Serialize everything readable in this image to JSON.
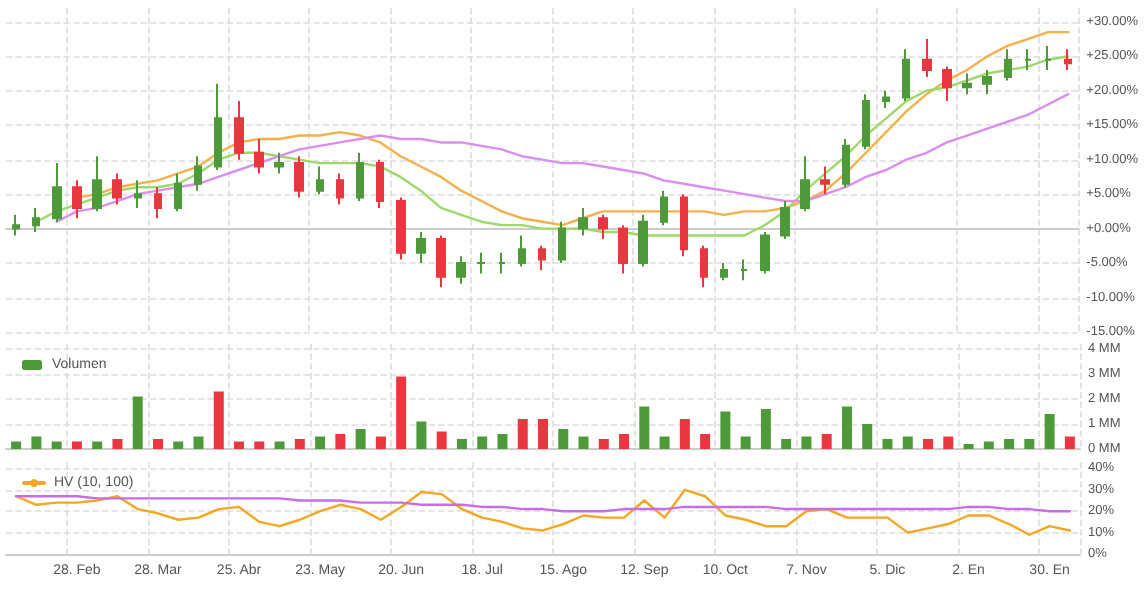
{
  "chart_data": [
    {
      "type": "candlestick",
      "grid": true,
      "tick_labels": "y",
      "marker": "none",
      "categories": [
        null,
        null,
        null,
        null,
        null,
        null,
        null,
        null,
        null,
        null,
        null,
        null,
        null,
        null,
        null,
        null,
        null,
        null,
        null,
        null,
        null,
        null,
        null,
        null,
        null,
        null,
        null,
        null,
        null,
        null,
        null,
        null,
        null,
        null,
        null,
        null,
        null,
        null,
        null,
        null,
        null,
        null,
        null,
        null,
        null,
        null,
        null,
        null,
        null,
        null,
        null,
        null,
        null
      ],
      "ylim": [
        -15,
        32
      ],
      "yticks": [
        {
          "value": -15,
          "label": "-15.00%"
        },
        {
          "value": -10,
          "label": "-10.00%"
        },
        {
          "value": -5,
          "label": "-5.00%"
        },
        {
          "value": 0,
          "label": "+0.00%"
        },
        {
          "value": 5,
          "label": "+5.00%"
        },
        {
          "value": 10,
          "label": "+10.00%"
        },
        {
          "value": 15,
          "label": "+15.00%"
        },
        {
          "value": 20,
          "label": "+20.00%"
        },
        {
          "value": 25,
          "label": "+25.00%"
        },
        {
          "value": 30,
          "label": "+30.00%"
        }
      ],
      "ohlc": [
        [
          0,
          2,
          -1,
          0.5
        ],
        [
          0.5,
          3,
          -0.5,
          1.5
        ],
        [
          1.5,
          9.5,
          1,
          6
        ],
        [
          6,
          7,
          1.5,
          3
        ],
        [
          3,
          10.5,
          2.5,
          7
        ],
        [
          7,
          8,
          3.5,
          4.5
        ],
        [
          4.5,
          7,
          3,
          5
        ],
        [
          5,
          6,
          1.5,
          3
        ],
        [
          3,
          8,
          2.5,
          6.5
        ],
        [
          6.5,
          10.5,
          5.5,
          9
        ],
        [
          9,
          21,
          8.5,
          16
        ],
        [
          16,
          18.5,
          10,
          11
        ],
        [
          11,
          13,
          8,
          9
        ],
        [
          9,
          11,
          8,
          9.5
        ],
        [
          9.5,
          10.5,
          4.5,
          5.5
        ],
        [
          5.5,
          9,
          5,
          7
        ],
        [
          7,
          8,
          3.5,
          4.5
        ],
        [
          4.5,
          11,
          4,
          9.5
        ],
        [
          9.5,
          10,
          3,
          4
        ],
        [
          4,
          4.5,
          -4.5,
          -3.5
        ],
        [
          -3.5,
          -0.5,
          -5,
          -1.5
        ],
        [
          -1.5,
          -1,
          -8.5,
          -7
        ],
        [
          -7,
          -4,
          -8,
          -5
        ],
        [
          -5,
          -3.5,
          -6.5,
          -5
        ],
        [
          -5,
          -3.5,
          -6.5,
          -5
        ],
        [
          -5,
          -1,
          -5.5,
          -3
        ],
        [
          -3,
          -2.5,
          -6,
          -4.5
        ],
        [
          -4.5,
          1,
          -5,
          0
        ],
        [
          0,
          3,
          -1,
          1.5
        ],
        [
          1.5,
          2,
          -1.5,
          0
        ],
        [
          0,
          0.5,
          -6.5,
          -5
        ],
        [
          -5,
          2,
          -5.5,
          1
        ],
        [
          1,
          5.5,
          0.5,
          4.5
        ],
        [
          4.5,
          5,
          -4,
          -3
        ],
        [
          -3,
          -2.5,
          -8.5,
          -7
        ],
        [
          -7,
          -5,
          -7.5,
          -6
        ],
        [
          -6,
          -4.5,
          -7.5,
          -6
        ],
        [
          -6,
          -0.5,
          -6.5,
          -1
        ],
        [
          -1,
          4,
          -1.5,
          3
        ],
        [
          3,
          10.5,
          2.5,
          7
        ],
        [
          7,
          9,
          5,
          6.5
        ],
        [
          6.5,
          13,
          6,
          12
        ],
        [
          12,
          19.5,
          11.5,
          18.5
        ],
        [
          18.5,
          20,
          17.5,
          19
        ],
        [
          19,
          26,
          18.5,
          24.5
        ],
        [
          24.5,
          27.5,
          22,
          23
        ],
        [
          23,
          23.5,
          18.5,
          20.5
        ],
        [
          20.5,
          22.5,
          19.5,
          21
        ],
        [
          21,
          23,
          19.5,
          22
        ],
        [
          22,
          26,
          21.5,
          24.5
        ],
        [
          24.5,
          26,
          23,
          24.5
        ],
        [
          24.5,
          26.5,
          23,
          24.5
        ],
        [
          24.5,
          26,
          23,
          24
        ]
      ],
      "colors": [
        "#4e9a3a",
        "#4e9a3a",
        "#4e9a3a",
        "#e8373e",
        "#4e9a3a",
        "#e8373e",
        "#4e9a3a",
        "#e8373e",
        "#4e9a3a",
        "#4e9a3a",
        "#4e9a3a",
        "#e8373e",
        "#e8373e",
        "#4e9a3a",
        "#e8373e",
        "#4e9a3a",
        "#e8373e",
        "#4e9a3a",
        "#e8373e",
        "#e8373e",
        "#4e9a3a",
        "#e8373e",
        "#4e9a3a",
        "#4e9a3a",
        "#4e9a3a",
        "#4e9a3a",
        "#e8373e",
        "#4e9a3a",
        "#4e9a3a",
        "#e8373e",
        "#e8373e",
        "#4e9a3a",
        "#4e9a3a",
        "#e8373e",
        "#e8373e",
        "#4e9a3a",
        "#4e9a3a",
        "#4e9a3a",
        "#4e9a3a",
        "#4e9a3a",
        "#e8373e",
        "#4e9a3a",
        "#4e9a3a",
        "#4e9a3a",
        "#4e9a3a",
        "#e8373e",
        "#e8373e",
        "#4e9a3a",
        "#4e9a3a",
        "#4e9a3a",
        "#4e9a3a",
        "#4e9a3a",
        "#e8373e"
      ],
      "series": [
        {
          "type": "line",
          "color": "#f5b04c",
          "values": [
            null,
            null,
            null,
            4.5,
            5,
            6,
            6.5,
            7,
            8,
            9,
            11,
            12.5,
            13,
            13,
            13.5,
            13.5,
            14,
            13.5,
            12.5,
            10.5,
            9,
            7.5,
            5.5,
            4,
            2.5,
            1.5,
            1,
            0.5,
            1.5,
            2.5,
            2.5,
            2.5,
            2.5,
            2.5,
            2.5,
            2,
            2.5,
            2.5,
            3,
            4,
            5.5,
            8,
            11,
            14,
            17,
            19.5,
            21.5,
            23,
            25,
            26.5,
            27.5,
            28.5,
            28.5
          ]
        },
        {
          "type": "line",
          "color": "#9ed86a",
          "values": [
            null,
            1,
            2.5,
            3.5,
            4.5,
            5.5,
            6,
            6,
            6.5,
            8,
            10,
            11,
            11,
            10.5,
            10,
            9.5,
            9.5,
            9.5,
            9,
            7.5,
            5.5,
            3,
            2,
            1,
            0.5,
            0.5,
            0,
            0,
            0,
            -0.5,
            -0.5,
            -1,
            -1,
            -1,
            -1,
            -1,
            -1,
            0.5,
            2.5,
            5.5,
            8,
            10.5,
            13.5,
            16,
            18.5,
            20,
            20.5,
            21.5,
            22.5,
            23,
            23.5,
            24.5,
            25
          ]
        },
        {
          "type": "line",
          "color": "#d98ef0",
          "values": [
            null,
            null,
            1,
            2.5,
            3,
            4,
            5,
            5.5,
            6,
            6.5,
            7.5,
            8.5,
            9.5,
            10.5,
            11.5,
            12,
            12.5,
            13,
            13.5,
            13,
            13,
            12.5,
            12.5,
            12,
            11.5,
            10.5,
            10,
            9.5,
            9.5,
            9,
            8.5,
            8,
            7,
            6.5,
            6,
            5.5,
            5,
            4.5,
            4,
            4,
            5,
            6,
            7.5,
            8.5,
            10,
            11,
            12.5,
            13.5,
            14.5,
            15.5,
            16.5,
            18,
            19.5
          ]
        }
      ]
    },
    {
      "type": "bar",
      "grid": true,
      "tick_labels": "y",
      "legend": "top left",
      "categories": [
        null,
        null,
        null,
        null,
        null,
        null,
        null,
        null,
        null,
        null,
        null,
        null,
        null,
        null,
        null,
        null,
        null,
        null,
        null,
        null,
        null,
        null,
        null,
        null,
        null,
        null,
        null,
        null,
        null,
        null,
        null,
        null,
        null,
        null,
        null,
        null,
        null,
        null,
        null,
        null,
        null,
        null,
        null,
        null,
        null,
        null,
        null,
        null,
        null,
        null,
        null,
        null,
        null
      ],
      "ylim": [
        0,
        4.2
      ],
      "yticks": [
        {
          "value": 0,
          "label": "0 MM"
        },
        {
          "value": 1,
          "label": "1 MM"
        },
        {
          "value": 2,
          "label": "2 MM"
        },
        {
          "value": 3,
          "label": "3 MM"
        },
        {
          "value": 4,
          "label": "4 MM"
        }
      ],
      "series": [
        {
          "name": "Volumen",
          "values": [
            0.3,
            0.5,
            0.3,
            0.3,
            0.3,
            0.4,
            2.1,
            0.4,
            0.3,
            0.5,
            2.3,
            0.3,
            0.3,
            0.3,
            0.4,
            0.5,
            0.6,
            0.8,
            0.5,
            2.9,
            1.1,
            0.7,
            0.4,
            0.5,
            0.6,
            1.2,
            1.2,
            0.8,
            0.5,
            0.4,
            0.6,
            1.7,
            0.5,
            1.2,
            0.6,
            1.5,
            0.5,
            1.6,
            0.4,
            0.5,
            0.6,
            1.7,
            1,
            0.4,
            0.5,
            0.4,
            0.5,
            0.2,
            0.3,
            0.4,
            0.4,
            1.4,
            0.5
          ],
          "colors": [
            "#4e9a3a",
            "#4e9a3a",
            "#4e9a3a",
            "#e8373e",
            "#4e9a3a",
            "#e8373e",
            "#4e9a3a",
            "#e8373e",
            "#4e9a3a",
            "#4e9a3a",
            "#e8373e",
            "#e8373e",
            "#e8373e",
            "#4e9a3a",
            "#e8373e",
            "#4e9a3a",
            "#e8373e",
            "#4e9a3a",
            "#e8373e",
            "#e8373e",
            "#4e9a3a",
            "#e8373e",
            "#4e9a3a",
            "#4e9a3a",
            "#4e9a3a",
            "#e8373e",
            "#e8373e",
            "#4e9a3a",
            "#4e9a3a",
            "#e8373e",
            "#e8373e",
            "#4e9a3a",
            "#4e9a3a",
            "#e8373e",
            "#e8373e",
            "#4e9a3a",
            "#4e9a3a",
            "#4e9a3a",
            "#4e9a3a",
            "#4e9a3a",
            "#e8373e",
            "#4e9a3a",
            "#4e9a3a",
            "#4e9a3a",
            "#4e9a3a",
            "#e8373e",
            "#e8373e",
            "#4e9a3a",
            "#4e9a3a",
            "#4e9a3a",
            "#4e9a3a",
            "#4e9a3a",
            "#e8373e"
          ]
        }
      ]
    },
    {
      "type": "line",
      "grid": true,
      "legend": "top left",
      "marker": "none",
      "categories": [
        null,
        null,
        null,
        "28. Feb",
        null,
        null,
        null,
        "28. Mar",
        null,
        null,
        null,
        "25. Abr",
        null,
        null,
        null,
        "23. May",
        null,
        null,
        null,
        "20. Jun",
        null,
        null,
        null,
        "18. Jul",
        null,
        null,
        null,
        "15. Ago",
        null,
        null,
        null,
        "12. Sep",
        null,
        null,
        null,
        "10. Oct",
        null,
        null,
        null,
        "7. Nov",
        null,
        null,
        null,
        "5. Dic",
        null,
        null,
        null,
        "2. En",
        null,
        null,
        null,
        "30. En",
        null
      ],
      "ylim": [
        0,
        43
      ],
      "yticks": [
        {
          "value": 0,
          "label": "0%"
        },
        {
          "value": 10,
          "label": "10%"
        },
        {
          "value": 20,
          "label": "20%"
        },
        {
          "value": 30,
          "label": "30%"
        },
        {
          "value": 40,
          "label": "40%"
        }
      ],
      "series": [
        {
          "name": "HV (10, 100)",
          "color": "#f5a623",
          "values": [
            27,
            23,
            24,
            24,
            25,
            27,
            21,
            19,
            16,
            17,
            21,
            22,
            15,
            13,
            16,
            20,
            23,
            21,
            16,
            22,
            29,
            28,
            21,
            17,
            15,
            12,
            11,
            14,
            18,
            17,
            17,
            25,
            17,
            30,
            27,
            18,
            16,
            13,
            13,
            20,
            21,
            17,
            17,
            17,
            10,
            12,
            14,
            18,
            18,
            14,
            9,
            13,
            11
          ]
        },
        {
          "color": "#c86de8",
          "values": [
            27,
            27,
            27,
            27,
            26,
            26,
            26,
            26,
            26,
            26,
            26,
            26,
            26,
            26,
            25,
            25,
            25,
            24,
            24,
            24,
            23,
            23,
            23,
            22,
            22,
            21,
            21,
            20,
            20,
            20,
            21,
            21,
            21,
            22,
            22,
            22,
            22,
            22,
            21,
            21,
            21,
            21,
            21,
            21,
            21,
            21,
            21,
            22,
            22,
            21,
            21,
            20,
            20
          ]
        }
      ]
    }
  ]
}
